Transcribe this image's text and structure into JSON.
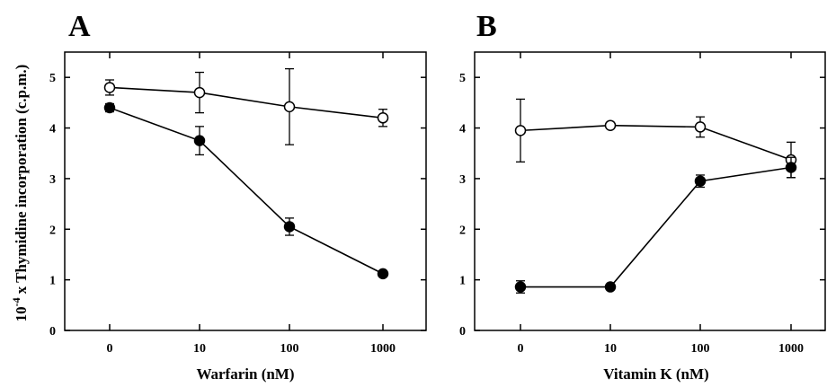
{
  "figure": {
    "ylabel_prefix": "10",
    "ylabel_exponent": "-4",
    "ylabel_text": "x Thymidine incorporation (c.p.m.)"
  },
  "chart_data": [
    {
      "type": "line",
      "panel": "A",
      "xlabel": "Warfarin (nM)",
      "ylabel": "10-4 x Thymidine incorporation (c.p.m.)",
      "categories": [
        "0",
        "10",
        "100",
        "1000"
      ],
      "ylim": [
        0,
        5.5
      ],
      "yticks": [
        "0",
        "1",
        "2",
        "3",
        "4",
        "5"
      ],
      "grid": false,
      "series": [
        {
          "marker": "open-circle",
          "values": [
            4.8,
            4.7,
            4.42,
            4.2
          ],
          "errors": [
            0.15,
            0.4,
            0.75,
            0.17
          ]
        },
        {
          "marker": "filled-circle",
          "values": [
            4.4,
            3.75,
            2.05,
            1.12
          ],
          "errors": [
            0.08,
            0.28,
            0.17,
            0.03
          ]
        }
      ]
    },
    {
      "type": "line",
      "panel": "B",
      "xlabel": "Vitamin K (nM)",
      "categories": [
        "0",
        "10",
        "100",
        "1000"
      ],
      "ylim": [
        0,
        5.5
      ],
      "yticks": [
        "0",
        "1",
        "2",
        "3",
        "4",
        "5"
      ],
      "grid": false,
      "series": [
        {
          "marker": "open-circle",
          "values": [
            3.95,
            4.05,
            4.02,
            3.37
          ],
          "errors": [
            0.62,
            0.05,
            0.2,
            0.35
          ]
        },
        {
          "marker": "filled-circle",
          "values": [
            0.86,
            0.86,
            2.95,
            3.22
          ],
          "errors": [
            0.12,
            0.02,
            0.12,
            0.2
          ]
        }
      ]
    }
  ]
}
